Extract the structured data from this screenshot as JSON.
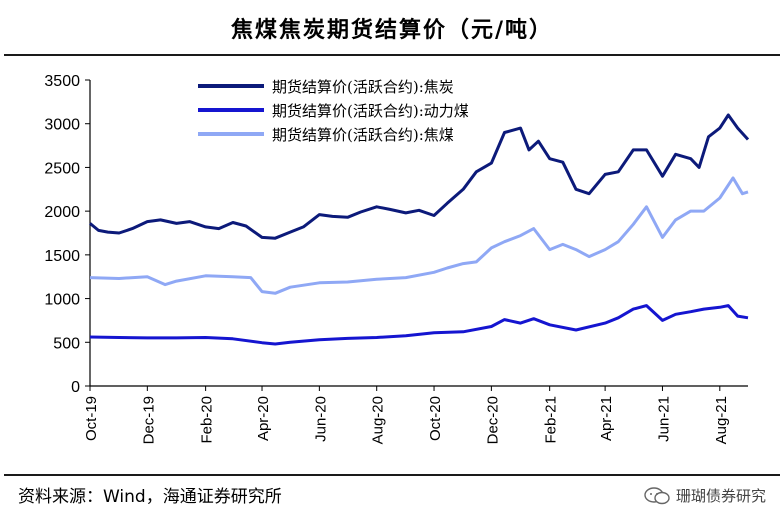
{
  "title": "焦煤焦炭期货结算价（元/吨）",
  "source": "资料来源：Wind，海通证券研究所",
  "watermark": "珊瑚债券研究",
  "chart_data": {
    "type": "line",
    "title": "焦煤焦炭期货结算价（元/吨）",
    "ylim": [
      0,
      3500
    ],
    "yticks": [
      0,
      500,
      1000,
      1500,
      2000,
      2500,
      3000,
      3500
    ],
    "xlim": [
      "2019-10-01",
      "2021-08-31"
    ],
    "xticks": [
      "2019-10-01",
      "2019-12-01",
      "2020-02-01",
      "2020-04-01",
      "2020-06-01",
      "2020-08-01",
      "2020-10-01",
      "2020-12-01",
      "2021-02-01",
      "2021-04-01",
      "2021-06-01",
      "2021-08-01"
    ],
    "xtick_labels": [
      "Oct-19",
      "Dec-19",
      "Feb-20",
      "Apr-20",
      "Jun-20",
      "Aug-20",
      "Oct-20",
      "Dec-20",
      "Feb-21",
      "Apr-21",
      "Jun-21",
      "Aug-21"
    ],
    "grid": false,
    "legend_position": "top-center",
    "series": [
      {
        "name": "期货结算价(活跃合约):焦炭",
        "color": "#0c1a7a",
        "points": [
          [
            "2019-10-01",
            1860
          ],
          [
            "2019-10-10",
            1780
          ],
          [
            "2019-10-20",
            1760
          ],
          [
            "2019-11-01",
            1750
          ],
          [
            "2019-11-15",
            1800
          ],
          [
            "2019-12-01",
            1880
          ],
          [
            "2019-12-15",
            1900
          ],
          [
            "2020-01-01",
            1860
          ],
          [
            "2020-01-15",
            1880
          ],
          [
            "2020-02-01",
            1820
          ],
          [
            "2020-02-15",
            1800
          ],
          [
            "2020-03-01",
            1870
          ],
          [
            "2020-03-15",
            1830
          ],
          [
            "2020-04-01",
            1700
          ],
          [
            "2020-04-15",
            1690
          ],
          [
            "2020-05-01",
            1760
          ],
          [
            "2020-05-15",
            1820
          ],
          [
            "2020-06-01",
            1960
          ],
          [
            "2020-06-15",
            1940
          ],
          [
            "2020-07-01",
            1930
          ],
          [
            "2020-07-15",
            1990
          ],
          [
            "2020-08-01",
            2050
          ],
          [
            "2020-08-15",
            2020
          ],
          [
            "2020-09-01",
            1980
          ],
          [
            "2020-09-15",
            2010
          ],
          [
            "2020-10-01",
            1950
          ],
          [
            "2020-10-15",
            2090
          ],
          [
            "2020-11-01",
            2250
          ],
          [
            "2020-11-15",
            2450
          ],
          [
            "2020-12-01",
            2550
          ],
          [
            "2020-12-15",
            2900
          ],
          [
            "2021-01-01",
            2950
          ],
          [
            "2021-01-10",
            2700
          ],
          [
            "2021-01-20",
            2800
          ],
          [
            "2021-02-01",
            2600
          ],
          [
            "2021-02-15",
            2560
          ],
          [
            "2021-03-01",
            2250
          ],
          [
            "2021-03-15",
            2200
          ],
          [
            "2021-04-01",
            2420
          ],
          [
            "2021-04-15",
            2450
          ],
          [
            "2021-05-01",
            2700
          ],
          [
            "2021-05-15",
            2700
          ],
          [
            "2021-06-01",
            2400
          ],
          [
            "2021-06-15",
            2650
          ],
          [
            "2021-07-01",
            2600
          ],
          [
            "2021-07-10",
            2500
          ],
          [
            "2021-07-20",
            2850
          ],
          [
            "2021-08-01",
            2950
          ],
          [
            "2021-08-10",
            3100
          ],
          [
            "2021-08-20",
            2950
          ],
          [
            "2021-08-31",
            2820
          ]
        ]
      },
      {
        "name": "期货结算价(活跃合约):动力煤",
        "color": "#1515d0",
        "points": [
          [
            "2019-10-01",
            560
          ],
          [
            "2019-11-01",
            555
          ],
          [
            "2019-12-01",
            550
          ],
          [
            "2020-01-01",
            550
          ],
          [
            "2020-02-01",
            555
          ],
          [
            "2020-03-01",
            540
          ],
          [
            "2020-04-01",
            495
          ],
          [
            "2020-04-15",
            480
          ],
          [
            "2020-05-01",
            500
          ],
          [
            "2020-06-01",
            530
          ],
          [
            "2020-07-01",
            545
          ],
          [
            "2020-08-01",
            555
          ],
          [
            "2020-09-01",
            575
          ],
          [
            "2020-10-01",
            610
          ],
          [
            "2020-11-01",
            620
          ],
          [
            "2020-12-01",
            680
          ],
          [
            "2020-12-15",
            760
          ],
          [
            "2021-01-01",
            720
          ],
          [
            "2021-01-15",
            770
          ],
          [
            "2021-02-01",
            700
          ],
          [
            "2021-03-01",
            640
          ],
          [
            "2021-04-01",
            720
          ],
          [
            "2021-04-15",
            780
          ],
          [
            "2021-05-01",
            880
          ],
          [
            "2021-05-15",
            920
          ],
          [
            "2021-06-01",
            750
          ],
          [
            "2021-06-15",
            820
          ],
          [
            "2021-07-01",
            850
          ],
          [
            "2021-07-15",
            880
          ],
          [
            "2021-08-01",
            900
          ],
          [
            "2021-08-10",
            920
          ],
          [
            "2021-08-20",
            800
          ],
          [
            "2021-08-31",
            780
          ]
        ]
      },
      {
        "name": "期货结算价(活跃合约):焦煤",
        "color": "#8fa8f5",
        "points": [
          [
            "2019-10-01",
            1240
          ],
          [
            "2019-11-01",
            1230
          ],
          [
            "2019-12-01",
            1250
          ],
          [
            "2019-12-20",
            1160
          ],
          [
            "2020-01-01",
            1200
          ],
          [
            "2020-02-01",
            1260
          ],
          [
            "2020-03-01",
            1250
          ],
          [
            "2020-03-20",
            1240
          ],
          [
            "2020-04-01",
            1080
          ],
          [
            "2020-04-15",
            1060
          ],
          [
            "2020-05-01",
            1130
          ],
          [
            "2020-06-01",
            1180
          ],
          [
            "2020-07-01",
            1190
          ],
          [
            "2020-08-01",
            1220
          ],
          [
            "2020-09-01",
            1240
          ],
          [
            "2020-10-01",
            1300
          ],
          [
            "2020-10-15",
            1350
          ],
          [
            "2020-11-01",
            1400
          ],
          [
            "2020-11-15",
            1420
          ],
          [
            "2020-12-01",
            1580
          ],
          [
            "2020-12-15",
            1650
          ],
          [
            "2021-01-01",
            1720
          ],
          [
            "2021-01-15",
            1800
          ],
          [
            "2021-02-01",
            1560
          ],
          [
            "2021-02-15",
            1620
          ],
          [
            "2021-03-01",
            1560
          ],
          [
            "2021-03-15",
            1480
          ],
          [
            "2021-04-01",
            1560
          ],
          [
            "2021-04-15",
            1650
          ],
          [
            "2021-05-01",
            1850
          ],
          [
            "2021-05-15",
            2050
          ],
          [
            "2021-06-01",
            1700
          ],
          [
            "2021-06-15",
            1900
          ],
          [
            "2021-07-01",
            2000
          ],
          [
            "2021-07-15",
            2000
          ],
          [
            "2021-08-01",
            2150
          ],
          [
            "2021-08-15",
            2380
          ],
          [
            "2021-08-25",
            2200
          ],
          [
            "2021-08-31",
            2220
          ]
        ]
      }
    ]
  }
}
